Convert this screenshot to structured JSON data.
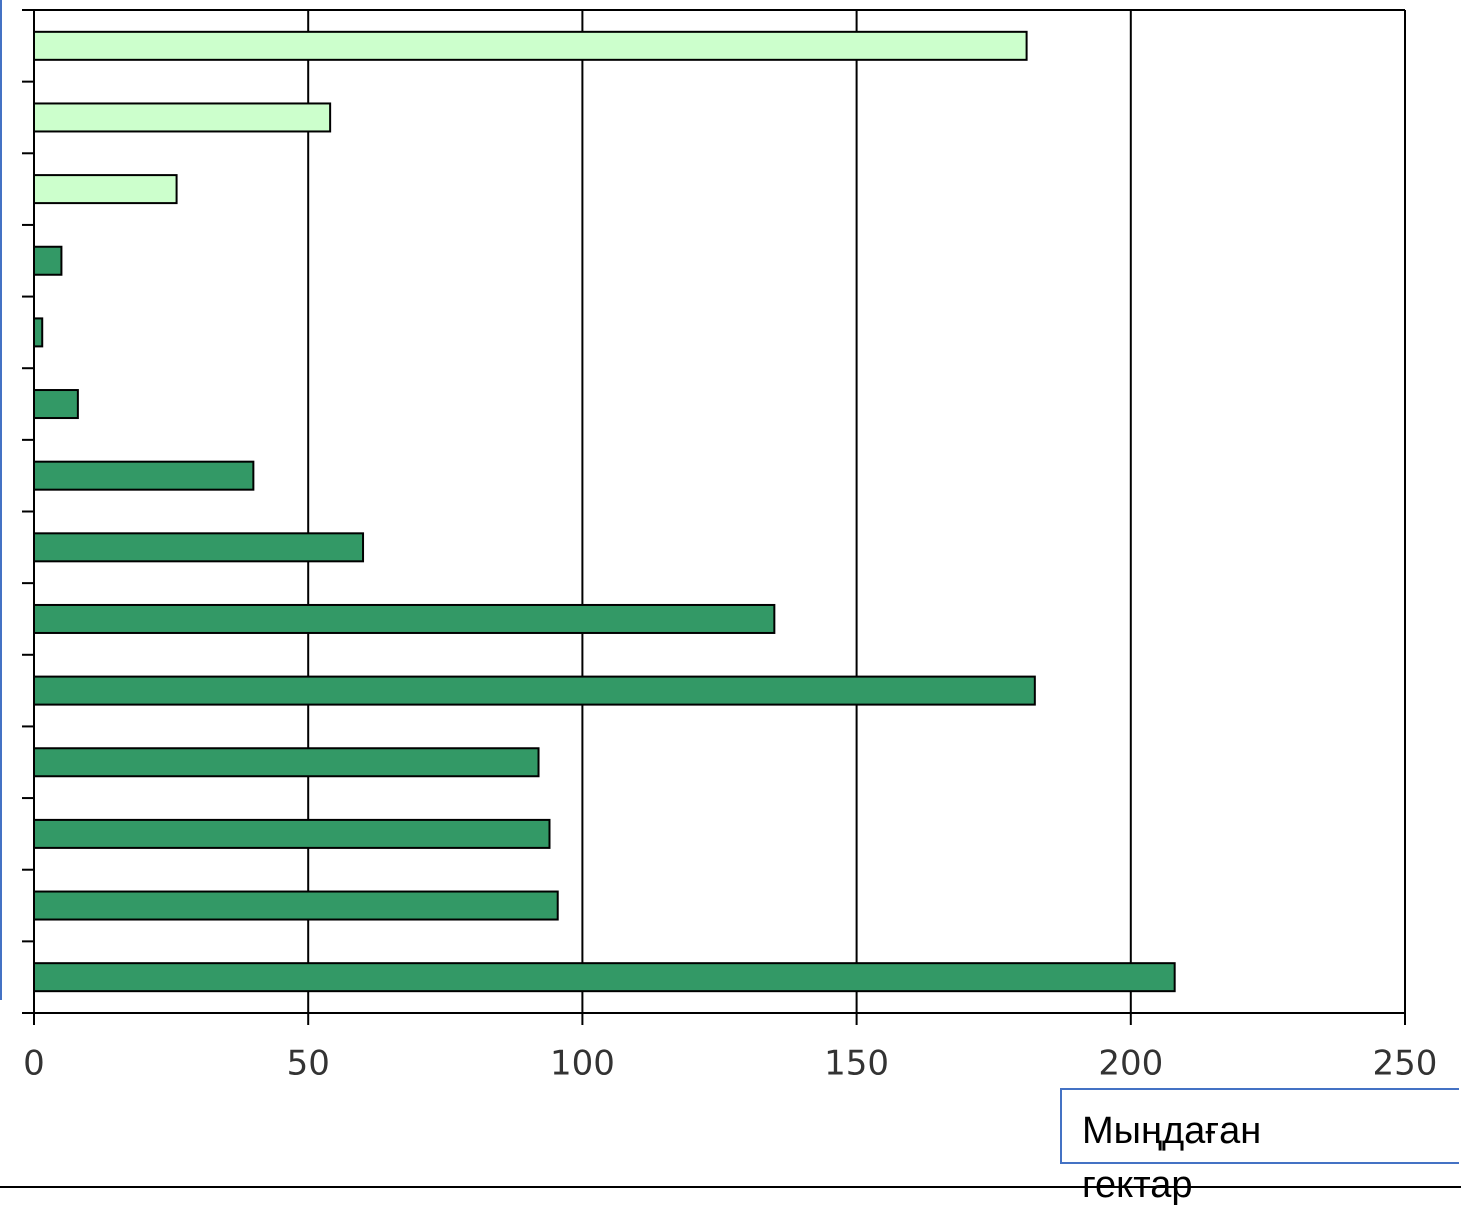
{
  "chart_data": {
    "type": "hbar",
    "x_label": "Мыңдаған гектар",
    "categories": [
      null,
      null,
      null,
      null,
      null,
      null,
      null,
      null,
      null,
      null,
      null,
      null,
      null,
      null
    ],
    "values": [
      181,
      54,
      26,
      5,
      1.5,
      8,
      40,
      60,
      135,
      182.5,
      92,
      94,
      95.5,
      208
    ],
    "colors": [
      "#ccffcc",
      "#ccffcc",
      "#ccffcc",
      "#339966",
      "#339966",
      "#339966",
      "#339966",
      "#339966",
      "#339966",
      "#339966",
      "#339966",
      "#339966",
      "#339966",
      "#339966"
    ],
    "xlim": [
      0,
      250
    ],
    "xticks": [
      0,
      50,
      100,
      150,
      200,
      250
    ],
    "grid": true
  }
}
